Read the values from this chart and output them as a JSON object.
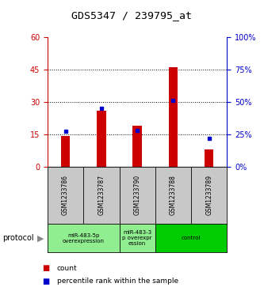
{
  "title": "GDS5347 / 239795_at",
  "samples": [
    "GSM1233786",
    "GSM1233787",
    "GSM1233790",
    "GSM1233788",
    "GSM1233789"
  ],
  "counts": [
    14,
    26,
    19,
    46,
    8
  ],
  "percentiles": [
    27,
    45,
    28,
    51,
    22
  ],
  "ylim_left": [
    0,
    60
  ],
  "ylim_right": [
    0,
    100
  ],
  "yticks_left": [
    0,
    15,
    30,
    45,
    60
  ],
  "yticks_right": [
    0,
    25,
    50,
    75,
    100
  ],
  "bar_color": "#cc0000",
  "dot_color": "#0000cc",
  "group_configs": [
    {
      "start": 0,
      "end": 1,
      "label": "miR-483-5p\noverexpression",
      "color": "#90ee90"
    },
    {
      "start": 2,
      "end": 2,
      "label": "miR-483-3\np overexpr\nession",
      "color": "#90ee90"
    },
    {
      "start": 3,
      "end": 4,
      "label": "control",
      "color": "#00cc00"
    }
  ],
  "protocol_label": "protocol",
  "legend_count": "count",
  "legend_percentile": "percentile rank within the sample",
  "background_color": "#ffffff",
  "plot_bg": "#ffffff",
  "tick_label_color_left": "#cc0000",
  "tick_label_color_right": "#0000cc",
  "sample_box_color": "#c8c8c8",
  "bar_width": 0.25
}
